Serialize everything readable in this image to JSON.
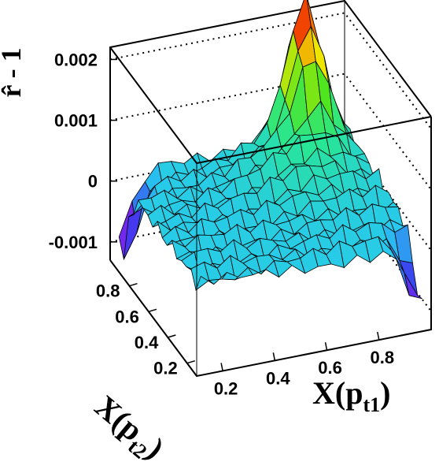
{
  "chart_data": {
    "type": "surface",
    "zlabel": "r̂ - 1",
    "xlabel": {
      "base": "X(p",
      "sub": "t1",
      "close": ")"
    },
    "ylabel": {
      "base": "X(p",
      "sub": "t2",
      "close": ")"
    },
    "xlim": [
      0.1,
      1.0
    ],
    "ylim": [
      0.1,
      1.0
    ],
    "zlim": [
      -0.0013,
      0.0022
    ],
    "z_ticks": [
      {
        "value": -0.001,
        "label": "-0.001"
      },
      {
        "value": 0,
        "label": "0"
      },
      {
        "value": 0.001,
        "label": "0.001"
      },
      {
        "value": 0.002,
        "label": "0.002"
      }
    ],
    "x_ticks": [
      {
        "value": 0.2,
        "label": "0.2"
      },
      {
        "value": 0.4,
        "label": "0.4"
      },
      {
        "value": 0.6,
        "label": "0.6"
      },
      {
        "value": 0.8,
        "label": "0.8"
      }
    ],
    "y_ticks": [
      {
        "value": 0.2,
        "label": "0.2"
      },
      {
        "value": 0.4,
        "label": "0.4"
      },
      {
        "value": 0.6,
        "label": "0.6"
      },
      {
        "value": 0.8,
        "label": "0.8"
      }
    ],
    "grid": "dotted lines on back walls at z ticks",
    "colormap": "rainbow (magenta → blue → cyan → green → yellow → red)",
    "surface_description": "Surface mostly near 0 to +0.0003 with small noisy spikes; sharp peak rising to about +0.0022 near the back corner (X(pt1)≈0.8, X(pt2)≈0.9); dips to about -0.0012 at the left corner (X(pt1)≈0.1, X(pt2)≈0.95) and the right corner (X(pt1)≈0.95, X(pt2)≈0.15).",
    "grid_x": [
      0.125,
      0.175,
      0.225,
      0.275,
      0.325,
      0.375,
      0.425,
      0.475,
      0.525,
      0.575,
      0.625,
      0.675,
      0.725,
      0.775,
      0.825,
      0.875,
      0.925,
      0.975
    ],
    "grid_y": [
      0.125,
      0.175,
      0.225,
      0.275,
      0.325,
      0.375,
      0.425,
      0.475,
      0.525,
      0.575,
      0.625,
      0.675,
      0.725,
      0.775,
      0.825,
      0.875,
      0.925,
      0.975
    ]
  }
}
